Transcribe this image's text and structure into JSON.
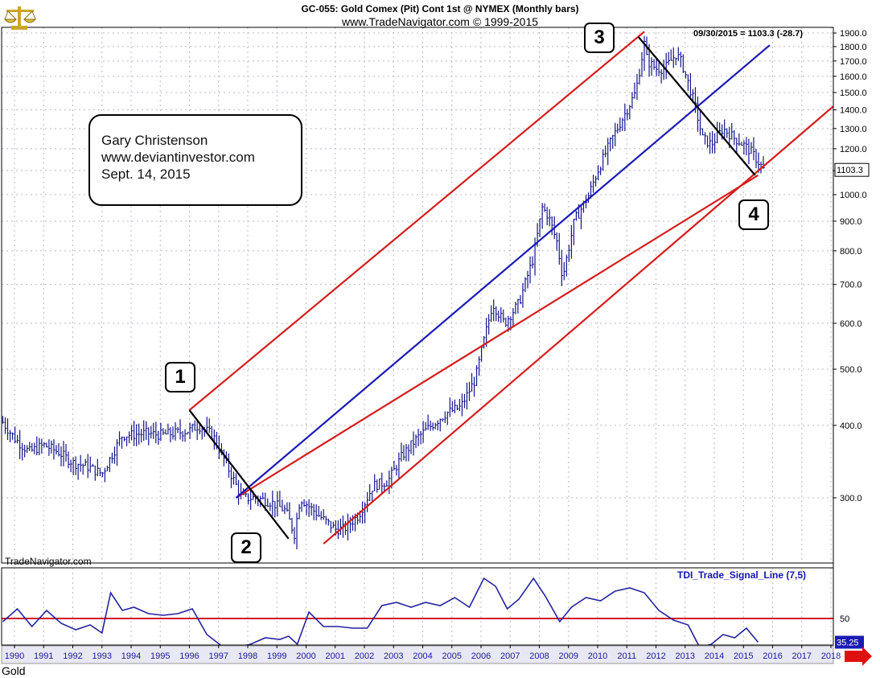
{
  "header": {
    "title": "GC-055:  Gold Comex (Pit) Cont 1st @ NYMEX  (Monthly bars)",
    "subtitle": "www.TradeNavigator.com © 1999-2015",
    "readout": "09/30/2015 = 1103.3 (-28.7)",
    "last_price_badge": "1103.3"
  },
  "annotation": {
    "author": "Gary Christenson",
    "site": "www.deviantinvestor.com",
    "date": "Sept. 14, 2015"
  },
  "markers": [
    "1",
    "2",
    "3",
    "4"
  ],
  "watermark": "TradeNavigator.com",
  "symbol_label": "Gold",
  "colors": {
    "bars": "#14148c",
    "channel_red": "#d41d1d",
    "midline_blue": "#1a1ab4",
    "trend_black": "#000000",
    "indicator": "#2323a0",
    "level_50": "#d41d1d",
    "badge_bg": "#1a1ab4",
    "arrow": "#e01010"
  },
  "icons": {
    "logo": "scales-logo-icon",
    "scroll": "right-arrow-icon"
  },
  "chart_data": [
    {
      "type": "line",
      "title": "GC-055:  Gold Comex (Pit) Cont 1st @ NYMEX  (Monthly bars)",
      "x_unit": "year",
      "y_scale": "log",
      "ylim": [
        255,
        1930
      ],
      "xlim": [
        1989.6,
        2018.5
      ],
      "y_ticks": [
        300.0,
        400.0,
        500.0,
        600.0,
        700.0,
        800.0,
        900.0,
        1000.0,
        1100.0,
        1200.0,
        1300.0,
        1400.0,
        1500.0,
        1600.0,
        1700.0,
        1800.0,
        1900.0
      ],
      "x_ticks": [
        1990,
        1991,
        1992,
        1993,
        1994,
        1995,
        1996,
        1997,
        1998,
        1999,
        2000,
        2001,
        2002,
        2003,
        2004,
        2005,
        2006,
        2007,
        2008,
        2009,
        2010,
        2011,
        2012,
        2013,
        2014,
        2015,
        2016,
        2017,
        2018
      ],
      "grid": true,
      "series": [
        {
          "x": [
            1989.6,
            1990.0,
            1990.5,
            1991.0,
            1991.5,
            1992.0,
            1992.5,
            1993.0,
            1993.4,
            1993.7,
            1994.0,
            1994.5,
            1995.0,
            1995.5,
            1996.0,
            1996.3,
            1996.8,
            1997.3,
            1997.8,
            1998.3,
            1998.8,
            1999.3,
            1999.6,
            1999.8,
            2000.1,
            2000.6,
            2001.0,
            2001.3,
            2001.8,
            2002.3,
            2002.8,
            2003.3,
            2003.8,
            2004.3,
            2004.8,
            2005.3,
            2005.8,
            2006.1,
            2006.4,
            2006.8,
            2007.3,
            2007.8,
            2008.1,
            2008.3,
            2008.6,
            2008.8,
            2009.2,
            2009.7,
            2010.0,
            2010.5,
            2011.0,
            2011.3,
            2011.6,
            2011.7,
            2012.0,
            2012.3,
            2012.7,
            2012.9,
            2013.3,
            2013.6,
            2013.9,
            2014.3,
            2014.7,
            2015.0,
            2015.3,
            2015.7
          ],
          "y": [
            405,
            380,
            360,
            370,
            360,
            345,
            340,
            330,
            360,
            385,
            385,
            388,
            385,
            388,
            392,
            400,
            385,
            340,
            300,
            300,
            295,
            285,
            260,
            300,
            290,
            275,
            265,
            265,
            280,
            315,
            320,
            355,
            380,
            400,
            420,
            430,
            480,
            560,
            650,
            600,
            650,
            780,
            950,
            920,
            830,
            720,
            900,
            1000,
            1100,
            1250,
            1400,
            1500,
            1820,
            1700,
            1650,
            1650,
            1750,
            1680,
            1450,
            1250,
            1220,
            1300,
            1250,
            1220,
            1180,
            1103.3
          ]
        }
      ],
      "lines": [
        {
          "x": [
            1996.0,
            2011.6
          ],
          "y": [
            425,
            1910
          ]
        },
        {
          "x": [
            1997.6,
            2015.5
          ],
          "y": [
            300,
            1080
          ]
        },
        {
          "x": [
            2000.6,
            2018.5
          ],
          "y": [
            250,
            1480
          ]
        },
        {
          "x": [
            1997.6,
            2015.9
          ],
          "y": [
            300,
            1810
          ]
        },
        {
          "x": [
            1996.0,
            1999.4
          ],
          "y": [
            425,
            255
          ]
        },
        {
          "x": [
            2011.4,
            2015.4
          ],
          "y": [
            1870,
            1080
          ]
        }
      ]
    },
    {
      "type": "line",
      "title": "TDI_Trade_Signal_Line (7,5)",
      "x_unit": "year",
      "ylim": [
        25,
        80
      ],
      "y_ticks": [
        50
      ],
      "reference_line": 50,
      "last_value": "35.25",
      "series": [
        {
          "x": [
            1989.6,
            1990.1,
            1990.6,
            1991.1,
            1991.6,
            1992.1,
            1992.6,
            1993.0,
            1993.3,
            1993.7,
            1994.1,
            1994.6,
            1995.1,
            1995.6,
            1996.1,
            1996.6,
            1997.1,
            1997.6,
            1998.1,
            1998.6,
            1999.1,
            1999.4,
            1999.7,
            2000.1,
            2000.6,
            2001.1,
            2001.6,
            2002.1,
            2002.6,
            2003.1,
            2003.6,
            2004.1,
            2004.6,
            2005.1,
            2005.6,
            2006.1,
            2006.5,
            2006.9,
            2007.3,
            2007.8,
            2008.2,
            2008.7,
            2009.1,
            2009.6,
            2010.1,
            2010.6,
            2011.1,
            2011.6,
            2012.1,
            2012.6,
            2013.1,
            2013.5,
            2013.9,
            2014.3,
            2014.7,
            2015.1,
            2015.5
          ],
          "y": [
            48,
            56,
            45,
            55,
            47,
            43,
            46,
            41,
            66,
            55,
            57,
            53,
            52,
            53,
            56,
            40,
            33,
            32,
            34,
            38,
            37,
            39,
            34,
            54,
            45,
            45,
            44,
            44,
            58,
            60,
            57,
            60,
            58,
            63,
            57,
            75,
            70,
            56,
            62,
            75,
            64,
            48,
            57,
            63,
            61,
            67,
            69,
            66,
            55,
            49,
            46,
            32,
            34,
            40,
            38,
            44,
            35.25
          ]
        }
      ]
    }
  ]
}
